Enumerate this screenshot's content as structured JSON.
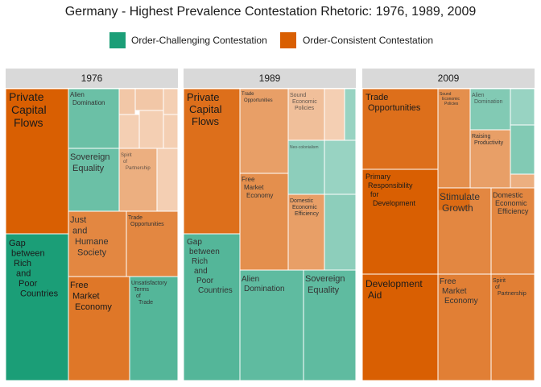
{
  "title": "Germany - Highest Prevalence Contestation Rhetoric: 1976, 1989, 2009",
  "legend": [
    {
      "label": "Order-Challenging Contestation",
      "color": "#1b9e77"
    },
    {
      "label": "Order-Consistent Contestation",
      "color": "#d95f02"
    }
  ],
  "chart_data": {
    "type": "treemap",
    "title": "Germany - Highest Prevalence Contestation Rhetoric: 1976, 1989, 2009",
    "categories": [
      "Order-Challenging Contestation",
      "Order-Consistent Contestation"
    ],
    "panels": [
      {
        "year": "1976",
        "tiles": [
          {
            "label": "Private Capital Flows",
            "category": "Order-Consistent Contestation"
          },
          {
            "label": "Gap between Rich and Poor Countries",
            "category": "Order-Challenging Contestation"
          },
          {
            "label": "Alien Domination",
            "category": "Order-Challenging Contestation"
          },
          {
            "label": "Sovereign Equality",
            "category": "Order-Challenging Contestation"
          },
          {
            "label": "Spirit of Partnership",
            "category": "Order-Consistent Contestation"
          },
          {
            "label": "Just and Humane Society",
            "category": "Order-Consistent Contestation"
          },
          {
            "label": "Trade Opportunities",
            "category": "Order-Consistent Contestation"
          },
          {
            "label": "Free Market Economy",
            "category": "Order-Consistent Contestation"
          },
          {
            "label": "Unsatisfactory Terms of Trade",
            "category": "Order-Challenging Contestation"
          }
        ]
      },
      {
        "year": "1989",
        "tiles": [
          {
            "label": "Private Capital Flows",
            "category": "Order-Consistent Contestation"
          },
          {
            "label": "Gap between Rich and Poor Countries",
            "category": "Order-Challenging Contestation"
          },
          {
            "label": "Trade Opportunities",
            "category": "Order-Consistent Contestation"
          },
          {
            "label": "Sound Economic Policies",
            "category": "Order-Consistent Contestation"
          },
          {
            "label": "Neo-colonialism",
            "category": "Order-Challenging Contestation"
          },
          {
            "label": "Free Market Economy",
            "category": "Order-Consistent Contestation"
          },
          {
            "label": "Domestic Economic Efficiency",
            "category": "Order-Consistent Contestation"
          },
          {
            "label": "Alien Domination",
            "category": "Order-Challenging Contestation"
          },
          {
            "label": "Sovereign Equality",
            "category": "Order-Challenging Contestation"
          }
        ]
      },
      {
        "year": "2009",
        "tiles": [
          {
            "label": "Trade Opportunities",
            "category": "Order-Consistent Contestation"
          },
          {
            "label": "Sound Economic Policies",
            "category": "Order-Consistent Contestation"
          },
          {
            "label": "Alien Domination",
            "category": "Order-Challenging Contestation"
          },
          {
            "label": "Raising Productivity",
            "category": "Order-Consistent Contestation"
          },
          {
            "label": "Primary Responsibility for Development",
            "category": "Order-Consistent Contestation"
          },
          {
            "label": "Stimulate Growth",
            "category": "Order-Consistent Contestation"
          },
          {
            "label": "Domestic Economic Efficiency",
            "category": "Order-Consistent Contestation"
          },
          {
            "label": "Development Aid",
            "category": "Order-Consistent Contestation"
          },
          {
            "label": "Free Market Economy",
            "category": "Order-Consistent Contestation"
          },
          {
            "label": "Spirit of Partnership",
            "category": "Order-Consistent Contestation"
          }
        ]
      }
    ]
  }
}
